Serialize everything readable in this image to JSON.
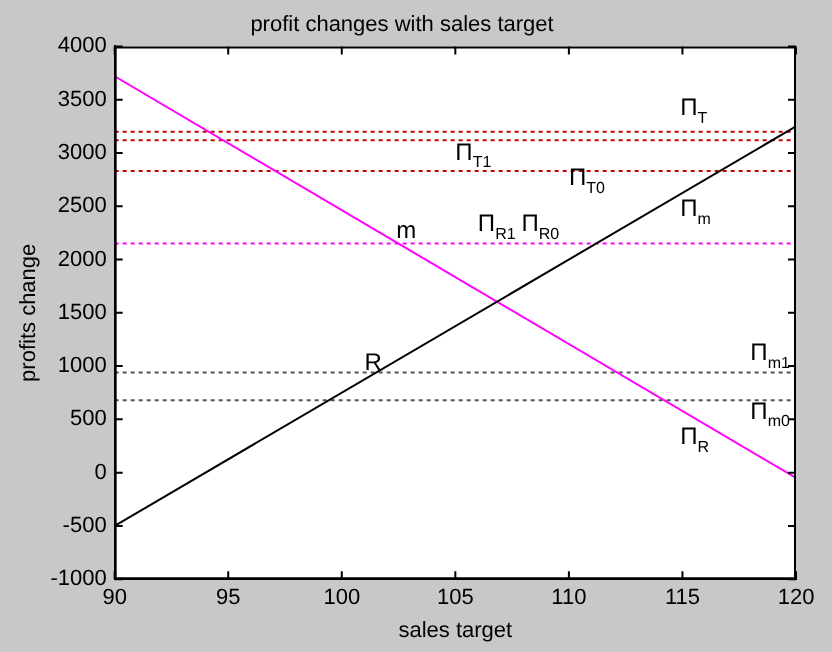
{
  "chart_data": {
    "type": "line",
    "title": "profit changes with sales target",
    "xlabel": "sales target",
    "ylabel": "profits change",
    "xlim": [
      90,
      120
    ],
    "xticks": [
      90,
      95,
      100,
      105,
      110,
      115,
      120
    ],
    "ylim": [
      -1000,
      4000
    ],
    "yticks": [
      -1000,
      -500,
      0,
      500,
      1000,
      1500,
      2000,
      2500,
      3000,
      3500,
      4000
    ],
    "grid": false,
    "legend": false,
    "marker": "none",
    "line_style": "solid",
    "x": [
      90,
      120
    ],
    "series": [
      {
        "color": "#000000",
        "values": [
          -500,
          3250
        ]
      },
      {
        "color": "#ff00ff",
        "values": [
          3720,
          -50
        ]
      }
    ],
    "ref_lines": [
      {
        "axis": "y",
        "value": 3200,
        "color": "#cc0000",
        "line_style": "dotted"
      },
      {
        "axis": "y",
        "value": 3120,
        "color": "#cc0000",
        "line_style": "dotted"
      },
      {
        "axis": "y",
        "value": 2830,
        "color": "#cc0000",
        "line_style": "dotted"
      },
      {
        "axis": "y",
        "value": 2150,
        "color": "#ff00ff",
        "line_style": "dotted"
      },
      {
        "axis": "y",
        "value": 940,
        "color": "#555555",
        "line_style": "dotted"
      },
      {
        "axis": "y",
        "value": 680,
        "color": "#555555",
        "line_style": "dotted"
      }
    ],
    "annotations": [
      "Π$_{T}$",
      "Π$_{T1}$",
      {
        "text": "Π$_{T0}$",
        "x": 110,
        "y": 2760
      },
      "Π$_{m}$",
      "Π$_{R1}$",
      "Π$_{R0}$",
      {
        "text": "m",
        "x": 102.4,
        "y": 2260
      },
      {
        "text": "R",
        "x": 101,
        "y": 1030
      },
      "Π$_{m1}$",
      "Π$_{m0}$",
      "Π$_{R}$"
    ]
  }
}
